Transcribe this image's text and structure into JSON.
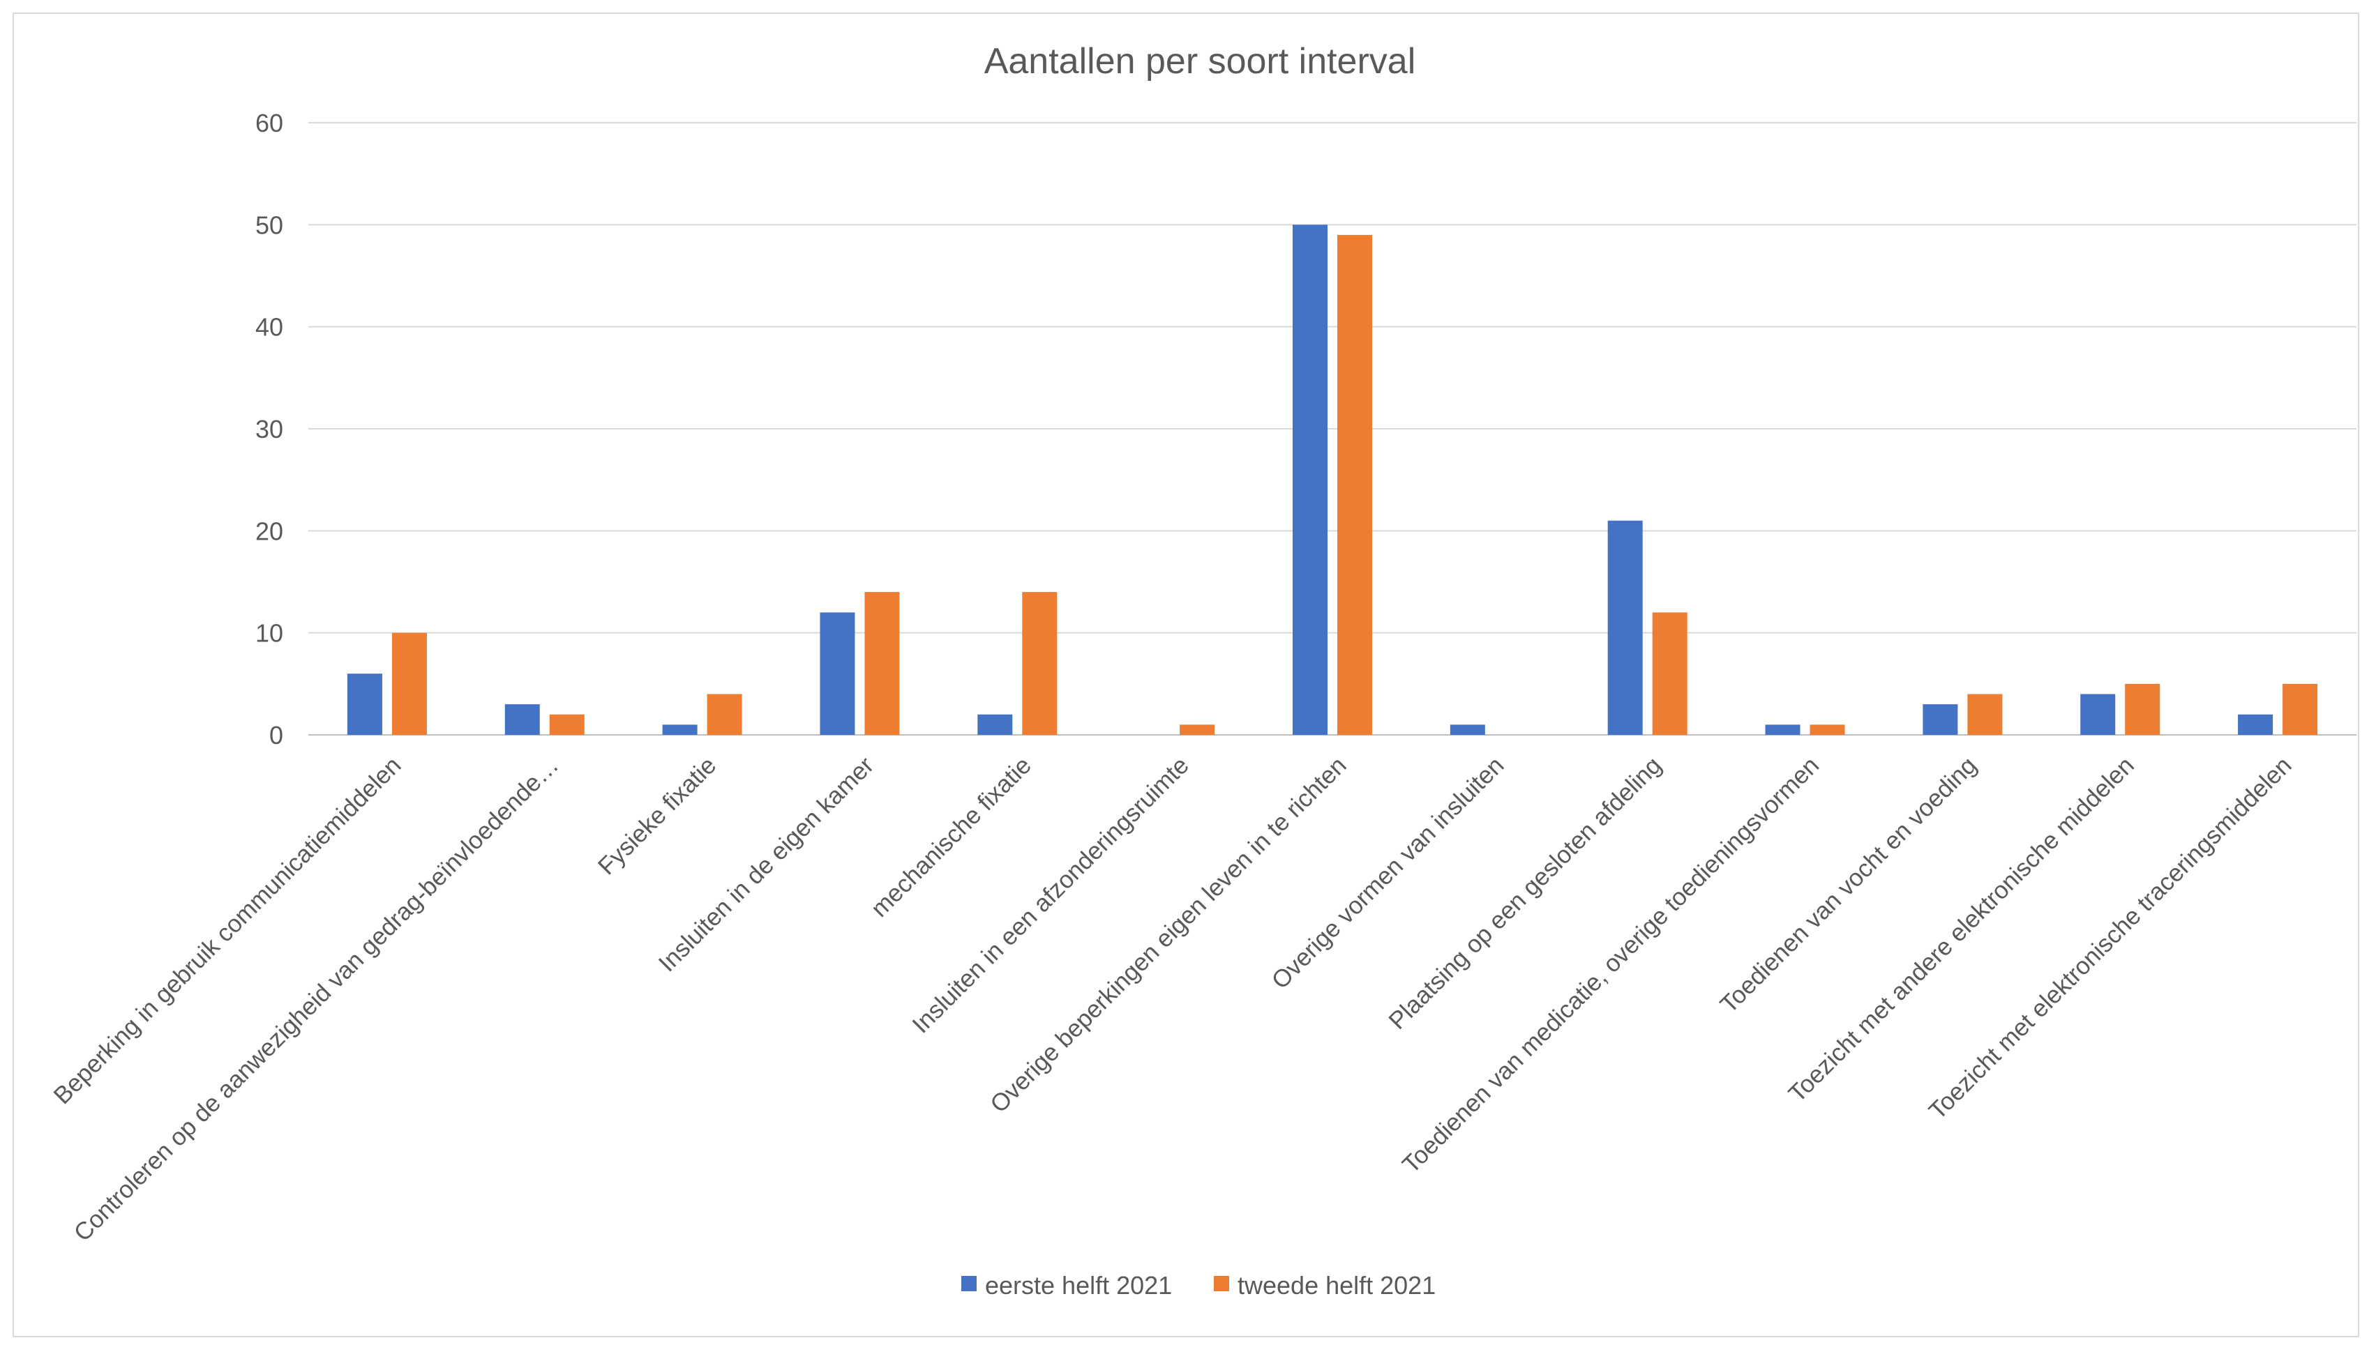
{
  "chart_data": {
    "type": "bar",
    "title": "Aantallen per soort interval",
    "xlabel": "",
    "ylabel": "",
    "ylim": [
      0,
      60
    ],
    "yticks": [
      0,
      10,
      20,
      30,
      40,
      50,
      60
    ],
    "grid": true,
    "legend_position": "bottom",
    "categories": [
      "Beperking in gebruik communicatiemiddelen",
      "Controleren op de aanwezigheid van gedrag-beïnvloedende…",
      "Fysieke fixatie",
      "Insluiten in de eigen kamer",
      "mechanische fixatie",
      "Insluiten in een afzonderingsruimte",
      "Overige beperkingen eigen leven in te richten",
      "Overige vormen van insluiten",
      "Plaatsing op een gesloten afdeling",
      "Toedienen van medicatie, overige toedieningsvormen",
      "Toedienen van vocht en voeding",
      "Toezicht met andere elektronische middelen",
      "Toezicht met elektronische traceringsmiddelen"
    ],
    "series": [
      {
        "name": "eerste helft 2021",
        "color": "#4472c4",
        "values": [
          6,
          3,
          1,
          12,
          2,
          0,
          50,
          1,
          21,
          1,
          3,
          4,
          2
        ]
      },
      {
        "name": "tweede helft 2021",
        "color": "#ed7d31",
        "values": [
          10,
          2,
          4,
          14,
          14,
          1,
          49,
          0,
          12,
          1,
          4,
          5,
          5
        ]
      }
    ]
  }
}
